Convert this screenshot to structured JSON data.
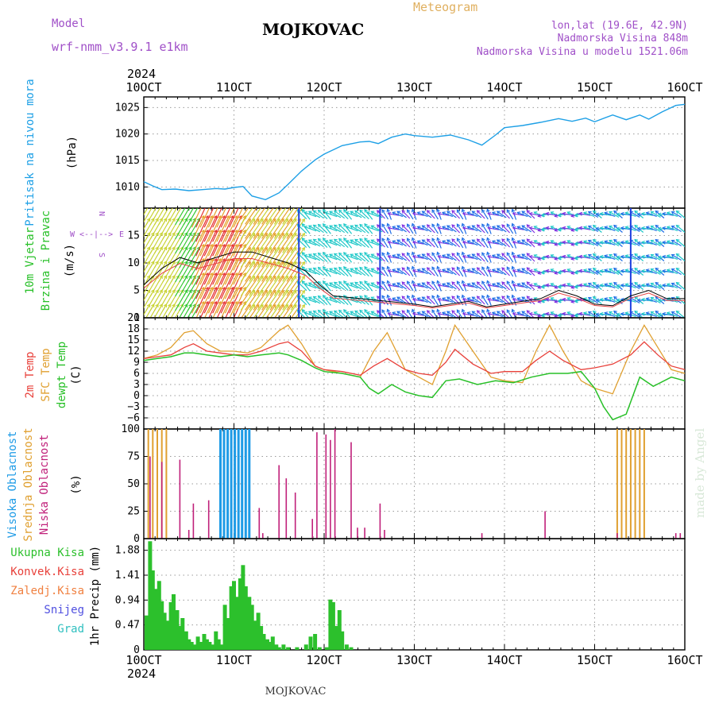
{
  "header": {
    "model_label": "Model",
    "model_value": "wrf-nmm_v3.9.1  e1km",
    "title": "MOJKOVAC",
    "meteogram": "Meteogram",
    "lonlat": "lon,lat (19.6E, 42.9N)",
    "elevation": "Nadmorska Visina 848m",
    "model_elevation": "Nadmorska Visina u modelu 1521.06m",
    "year_top": "2024",
    "year_bottom": "2024",
    "footer_title": "MOJKOVAC",
    "credit": "made by Angel"
  },
  "colors": {
    "pressure": "#1ea0e6",
    "temp2m": "#e8403a",
    "sfc": "#e0a030",
    "dew": "#28c028",
    "high_cloud": "#1e9be6",
    "mid_cloud": "#e0a030",
    "low_cloud": "#c0207a",
    "precip": "#2cc02c",
    "snow": "#5050e0",
    "grad": "#30c0c0",
    "wind_label": "#28c028",
    "compass": "#a050c8"
  },
  "chart_data": [
    {
      "type": "line",
      "panel": "pressure",
      "ylabel_side": "Pritisak na nivou mora",
      "ylabel_unit": "(hPa)",
      "x_ticks": [
        "10OCT",
        "11OCT",
        "12OCT",
        "13OCT",
        "14OCT",
        "15OCT",
        "16OCT"
      ],
      "ylim": [
        1006,
        1027
      ],
      "yticks": [
        1010,
        1015,
        1020,
        1025
      ],
      "grid": true,
      "series": [
        {
          "name": "Pritisak na nivou mora",
          "x": [
            0,
            0.1,
            0.2,
            0.35,
            0.5,
            0.65,
            0.8,
            0.9,
            1.0,
            1.1,
            1.2,
            1.35,
            1.5,
            1.6,
            1.75,
            1.9,
            2.0,
            2.2,
            2.4,
            2.5,
            2.6,
            2.75,
            2.9,
            3.0,
            3.2,
            3.4,
            3.6,
            3.75,
            3.9,
            4.0,
            4.2,
            4.4,
            4.6,
            4.75,
            4.9,
            5.0,
            5.2,
            5.35,
            5.5,
            5.6,
            5.75,
            5.9,
            6.0
          ],
          "y": [
            1011,
            1010.2,
            1009.5,
            1009.6,
            1009.3,
            1009.5,
            1009.7,
            1009.6,
            1009.9,
            1010.1,
            1008.3,
            1007.6,
            1008.9,
            1010.5,
            1013,
            1015.1,
            1016.2,
            1017.8,
            1018.5,
            1018.6,
            1018.2,
            1019.4,
            1020,
            1019.7,
            1019.4,
            1019.8,
            1018.9,
            1017.9,
            1019.8,
            1021.2,
            1021.6,
            1022.2,
            1022.9,
            1022.4,
            1023,
            1022.3,
            1023.6,
            1022.7,
            1023.6,
            1022.8,
            1024.2,
            1025.4,
            1025.6
          ]
        }
      ]
    },
    {
      "type": "line",
      "panel": "wind",
      "ylabel_side": "10m Vjetar Brzina i Pravac",
      "ylabel_unit": "(m/s)",
      "compass": [
        "W",
        "<--|-->",
        "E"
      ],
      "compass_ns": [
        "N",
        "S"
      ],
      "ylim": [
        0,
        20
      ],
      "yticks": [
        0,
        5,
        10,
        15
      ],
      "grid": true,
      "series": [
        {
          "name": "wind speed",
          "x": [
            0,
            0.2,
            0.4,
            0.6,
            0.8,
            1.0,
            1.2,
            1.4,
            1.6,
            1.8,
            1.95,
            2.1,
            2.4,
            2.7,
            3.0,
            3.2,
            3.4,
            3.6,
            3.8,
            4.0,
            4.2,
            4.4,
            4.6,
            4.8,
            5.0,
            5.2,
            5.4,
            5.6,
            5.8,
            6.0
          ],
          "y": [
            6,
            9,
            11,
            10,
            11,
            12,
            12,
            11,
            10,
            8.5,
            6,
            4,
            3.5,
            3,
            2.5,
            2,
            2.5,
            3,
            2,
            2.5,
            3,
            3.5,
            5,
            4,
            2.5,
            2.2,
            4,
            5,
            3.5,
            3.5
          ]
        }
      ],
      "arrow_color_scale": [
        "#1e6ee6",
        "#1ec8c8",
        "#32c832",
        "#c8d232",
        "#e6a028",
        "#e63232"
      ]
    },
    {
      "type": "line",
      "panel": "temperature",
      "ylabel_side_1": "2m Temp",
      "ylabel_side_2": "SFC Temp",
      "ylabel_side_3": "dewpt Temp",
      "ylabel_unit": "(C)",
      "ylim": [
        -9,
        21
      ],
      "yticks": [
        -6,
        -3,
        0,
        3,
        6,
        9,
        12,
        15,
        18,
        21
      ],
      "grid": true,
      "series": [
        {
          "name": "2m Temp",
          "x": [
            0,
            0.15,
            0.3,
            0.45,
            0.55,
            0.7,
            0.85,
            1.0,
            1.15,
            1.3,
            1.5,
            1.6,
            1.75,
            1.9,
            2.0,
            2.2,
            2.4,
            2.55,
            2.7,
            2.9,
            3.05,
            3.2,
            3.35,
            3.45,
            3.65,
            3.85,
            4.0,
            4.2,
            4.35,
            4.5,
            4.65,
            4.85,
            5.0,
            5.2,
            5.4,
            5.55,
            5.7,
            5.85,
            6.0
          ],
          "y": [
            10,
            10.5,
            11,
            13,
            14,
            12,
            11.5,
            11,
            11,
            12,
            14,
            14.5,
            12,
            8,
            7,
            6.5,
            5.5,
            8,
            10,
            7,
            6,
            5.5,
            9,
            12.5,
            8.5,
            6,
            6.5,
            6.5,
            9.5,
            12,
            9.5,
            7,
            7.5,
            8.5,
            11,
            14.5,
            11,
            8,
            7
          ]
        },
        {
          "name": "SFC Temp",
          "x": [
            0,
            0.15,
            0.3,
            0.45,
            0.55,
            0.7,
            0.85,
            1.0,
            1.15,
            1.3,
            1.5,
            1.6,
            1.75,
            1.9,
            2.0,
            2.2,
            2.4,
            2.55,
            2.7,
            2.9,
            3.05,
            3.2,
            3.35,
            3.45,
            3.65,
            3.85,
            4.0,
            4.2,
            4.35,
            4.5,
            4.65,
            4.85,
            5.0,
            5.2,
            5.4,
            5.55,
            5.7,
            5.85,
            6.0
          ],
          "y": [
            10,
            11,
            13,
            17,
            17.5,
            14,
            12,
            12,
            11.5,
            13,
            17.5,
            19,
            14,
            8,
            7,
            6,
            5,
            12,
            17,
            7,
            5,
            3,
            12,
            19,
            12,
            5,
            4,
            3.5,
            12,
            19,
            12,
            4,
            2,
            0.5,
            12,
            19,
            13,
            7,
            6
          ]
        },
        {
          "name": "dewpt Temp",
          "x": [
            0,
            0.15,
            0.3,
            0.45,
            0.55,
            0.7,
            0.85,
            1.0,
            1.15,
            1.3,
            1.5,
            1.6,
            1.75,
            1.9,
            2.0,
            2.2,
            2.4,
            2.5,
            2.6,
            2.75,
            2.9,
            3.05,
            3.2,
            3.35,
            3.5,
            3.7,
            3.9,
            4.1,
            4.3,
            4.5,
            4.7,
            4.85,
            5.0,
            5.1,
            5.2,
            5.35,
            5.5,
            5.65,
            5.85,
            6.0
          ],
          "y": [
            9.5,
            10,
            10.5,
            11.5,
            11.5,
            11,
            10.5,
            11,
            10.5,
            11,
            11.5,
            11,
            9.5,
            7.5,
            6.5,
            6,
            5,
            2,
            0.5,
            3,
            1,
            0,
            -0.5,
            4,
            4.5,
            3,
            4,
            3.5,
            5,
            6,
            6,
            6.5,
            2,
            -3,
            -6.5,
            -5,
            5,
            2.5,
            5,
            4
          ]
        }
      ]
    },
    {
      "type": "bar",
      "panel": "cloud",
      "ylabel_side_1": "Visoka Oblacnost",
      "ylabel_side_2": "Srednja Oblacnost",
      "ylabel_side_3": "Niska Oblacnost",
      "ylabel_unit": "(%)",
      "ylim": [
        0,
        100
      ],
      "yticks": [
        0,
        25,
        50,
        75,
        100
      ],
      "grid": true,
      "series": [
        {
          "name": "Visoka Oblacnost",
          "x": [
            0.85,
            0.89,
            0.93,
            0.97,
            1.01,
            1.05,
            1.09,
            1.13,
            1.17,
            4.75,
            4.86,
            4.97,
            5.08,
            5.19,
            5.3
          ],
          "values": [
            100,
            100,
            100,
            100,
            100,
            100,
            100,
            100,
            100,
            0,
            0,
            0,
            0,
            0,
            0
          ]
        },
        {
          "name": "Srednja Oblacnost",
          "x": [
            0.05,
            0.1,
            0.15,
            0.2,
            0.25,
            5.25,
            5.3,
            5.35,
            5.4,
            5.45,
            5.5,
            5.55
          ],
          "values": [
            100,
            100,
            100,
            100,
            100,
            100,
            100,
            100,
            100,
            100,
            100,
            100
          ]
        },
        {
          "name": "Niska Oblacnost",
          "x": [
            0.07,
            0.2,
            0.4,
            0.5,
            0.55,
            0.72,
            1.28,
            1.32,
            1.5,
            1.58,
            1.68,
            1.87,
            1.92,
            2.02,
            2.07,
            2.12,
            2.3,
            2.37,
            2.45,
            2.62,
            2.67,
            3.75,
            4.45,
            5.25,
            5.9,
            5.95
          ],
          "values": [
            75,
            70,
            72,
            8,
            32,
            35,
            28,
            5,
            67,
            55,
            42,
            18,
            97,
            95,
            90,
            100,
            88,
            10,
            10,
            32,
            8,
            5,
            25,
            5,
            5,
            5
          ]
        }
      ]
    },
    {
      "type": "bar",
      "panel": "precipitation",
      "ylabel_side_1": "Ukupna Kisa",
      "ylabel_side_2": "Konvek.Kisa",
      "ylabel_side_3": "Zaledj.Kisa",
      "ylabel_side_4": "Snijeg",
      "ylabel_side_5": "Grad",
      "ylabel_unit": "1hr Precip (mm)",
      "ylim": [
        0,
        2.1
      ],
      "yticks": [
        0,
        0.47,
        0.94,
        1.41,
        1.88
      ],
      "ytick_labels": [
        "0",
        "0.47",
        "0.94",
        "1.41",
        "1.88"
      ],
      "grid": true,
      "series": [
        {
          "name": "Ukupna Kisa",
          "x": [
            0.03,
            0.07,
            0.1,
            0.13,
            0.17,
            0.2,
            0.23,
            0.27,
            0.3,
            0.33,
            0.37,
            0.4,
            0.43,
            0.47,
            0.5,
            0.53,
            0.57,
            0.6,
            0.63,
            0.67,
            0.7,
            0.73,
            0.77,
            0.8,
            0.83,
            0.87,
            0.9,
            0.93,
            0.97,
            1.0,
            1.03,
            1.07,
            1.1,
            1.13,
            1.17,
            1.2,
            1.23,
            1.27,
            1.3,
            1.33,
            1.37,
            1.4,
            1.43,
            1.47,
            1.5,
            1.55,
            1.6,
            1.7,
            1.8,
            1.85,
            1.9,
            1.95,
            2.03,
            2.07,
            2.1,
            2.13,
            2.17,
            2.2,
            2.25,
            2.3
          ],
          "y": [
            0.65,
            2.05,
            1.5,
            1.15,
            1.3,
            0.92,
            0.7,
            0.55,
            0.9,
            1.05,
            0.75,
            0.45,
            0.6,
            0.35,
            0.2,
            0.15,
            0.1,
            0.25,
            0.15,
            0.3,
            0.2,
            0.15,
            0.1,
            0.35,
            0.2,
            0.1,
            0.85,
            0.6,
            1.2,
            1.3,
            1.0,
            1.35,
            1.6,
            1.2,
            1.0,
            0.85,
            0.55,
            0.7,
            0.45,
            0.3,
            0.2,
            0.15,
            0.25,
            0.1,
            0.05,
            0.1,
            0.05,
            0.05,
            0.1,
            0.25,
            0.3,
            0.05,
            0.05,
            0.95,
            0.9,
            0.45,
            0.75,
            0.35,
            0.1,
            0.05
          ]
        }
      ]
    }
  ]
}
